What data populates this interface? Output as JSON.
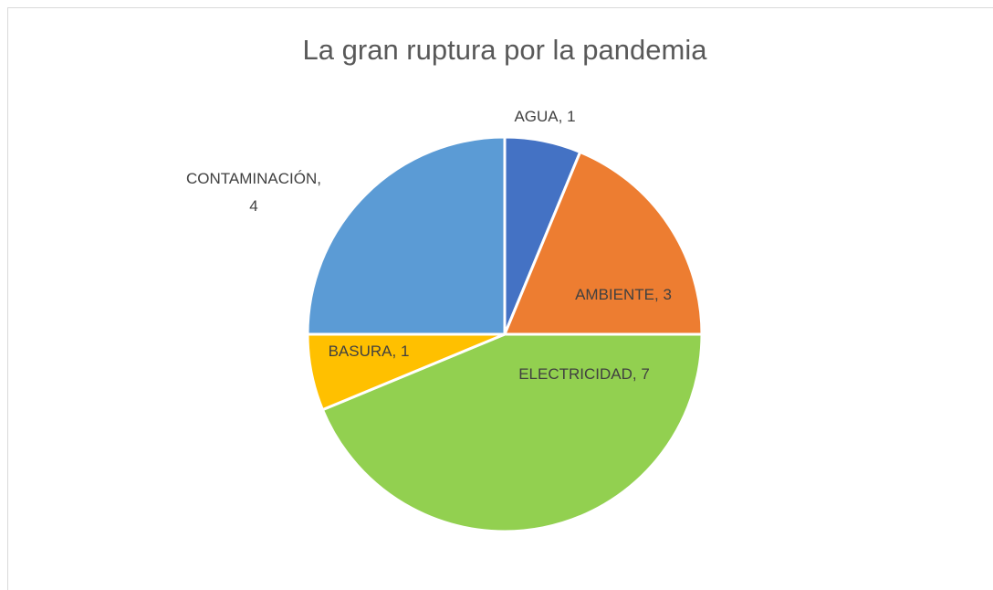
{
  "chart_data": {
    "type": "pie",
    "title": "La gran ruptura por la pandemia",
    "categories": [
      "AGUA",
      "AMBIENTE",
      "ELECTRICIDAD",
      "BASURA",
      "CONTAMINACIÓN"
    ],
    "values": [
      1,
      3,
      7,
      1,
      4
    ],
    "value_labels": [
      "AGUA, 1",
      "AMBIENTE, 3",
      "ELECTRICIDAD, 7",
      "BASURA, 1",
      "CONTAMINACIÓN,\n4"
    ],
    "colors": [
      "#4472c4",
      "#ed7d31",
      "#92d050",
      "#ffc000",
      "#5b9bd5"
    ]
  }
}
